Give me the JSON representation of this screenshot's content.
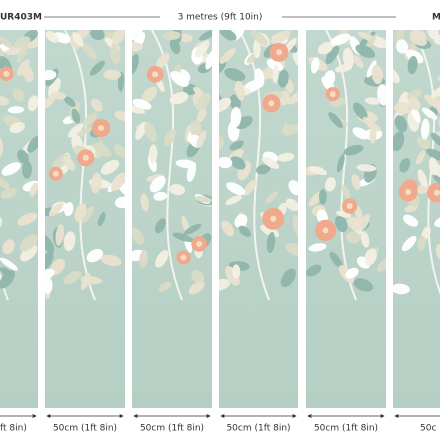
{
  "header": {
    "left_code": "UR403M",
    "width": "3 metres (9ft 10in)",
    "right_code": "M"
  },
  "panels": [
    {
      "label": "ft 8in)"
    },
    {
      "label": "50cm (1ft 8in)"
    },
    {
      "label": "50cm (1ft 8in)"
    },
    {
      "label": "50cm (1ft 8in)"
    },
    {
      "label": "50cm (1ft 8in)"
    },
    {
      "label": "50c"
    }
  ]
}
